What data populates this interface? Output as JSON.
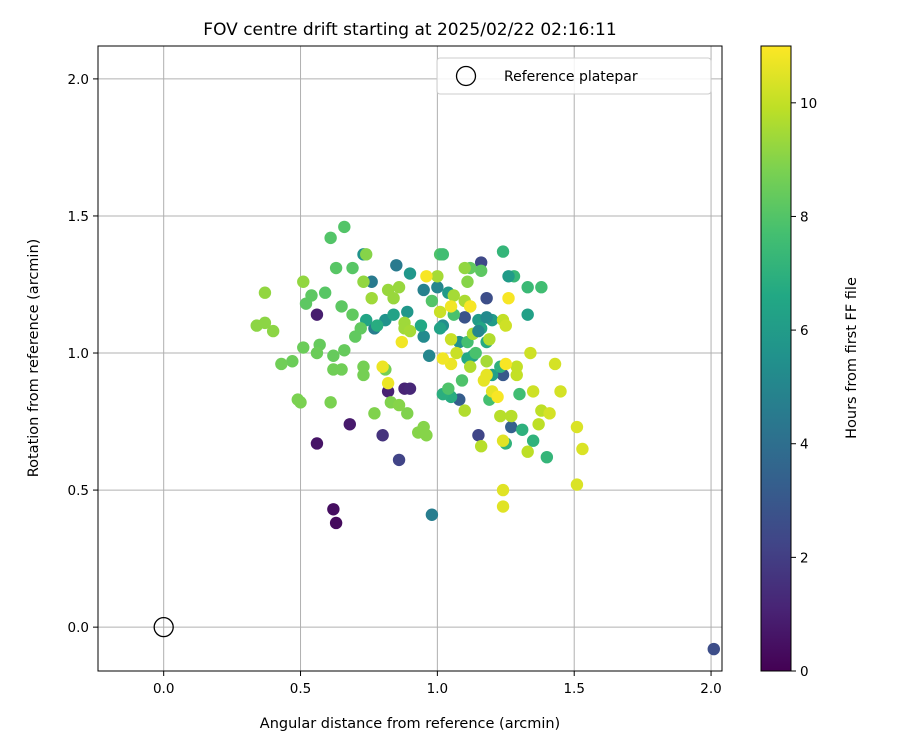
{
  "chart_data": {
    "type": "scatter",
    "title": "FOV centre drift starting at 2025/02/22 02:16:11",
    "xlabel": "Angular distance from reference (arcmin)",
    "ylabel": "Rotation from reference (arcmin)",
    "xlim": [
      -0.24,
      2.04
    ],
    "ylim": [
      -0.16,
      2.12
    ],
    "xticks": [
      "0.0",
      "0.5",
      "1.0",
      "1.5",
      "2.0"
    ],
    "xtick_values": [
      0.0,
      0.5,
      1.0,
      1.5,
      2.0
    ],
    "yticks": [
      "0.0",
      "0.5",
      "1.0",
      "1.5",
      "2.0"
    ],
    "ytick_values": [
      0.0,
      0.5,
      1.0,
      1.5,
      2.0
    ],
    "grid": true,
    "legend": {
      "label": "Reference platepar",
      "placement": "top-right"
    },
    "reference_point": {
      "x": 0.0,
      "y": 0.0
    },
    "colorbar": {
      "label": "Hours from first FF file",
      "colormap": "viridis",
      "range": [
        0,
        11
      ],
      "ticks": [
        "0",
        "2",
        "4",
        "6",
        "8",
        "10"
      ],
      "tick_values": [
        0,
        2,
        4,
        6,
        8,
        10
      ]
    },
    "series": [
      {
        "points": [
          {
            "x": 0.63,
            "y": 0.38,
            "h": 0.3
          },
          {
            "x": 0.62,
            "y": 0.43,
            "h": 0.4
          },
          {
            "x": 0.56,
            "y": 0.67,
            "h": 0.6
          },
          {
            "x": 0.68,
            "y": 0.74,
            "h": 0.8
          },
          {
            "x": 0.56,
            "y": 1.14,
            "h": 0.9
          },
          {
            "x": 0.82,
            "y": 0.86,
            "h": 1.0
          },
          {
            "x": 0.88,
            "y": 0.87,
            "h": 1.1
          },
          {
            "x": 0.9,
            "y": 0.87,
            "h": 1.2
          },
          {
            "x": 0.8,
            "y": 0.7,
            "h": 1.6
          },
          {
            "x": 0.86,
            "y": 0.61,
            "h": 2.2
          },
          {
            "x": 1.15,
            "y": 0.7,
            "h": 2.3
          },
          {
            "x": 1.16,
            "y": 1.33,
            "h": 2.4
          },
          {
            "x": 1.18,
            "y": 1.2,
            "h": 2.6
          },
          {
            "x": 1.1,
            "y": 1.13,
            "h": 2.8
          },
          {
            "x": 1.24,
            "y": 0.92,
            "h": 3.0
          },
          {
            "x": 1.08,
            "y": 0.83,
            "h": 3.2
          },
          {
            "x": 1.27,
            "y": 0.73,
            "h": 3.4
          },
          {
            "x": 2.01,
            "y": -0.08,
            "h": 2.6
          },
          {
            "x": 0.98,
            "y": 0.41,
            "h": 4.6
          },
          {
            "x": 0.85,
            "y": 1.32,
            "h": 4.5
          },
          {
            "x": 0.76,
            "y": 1.26,
            "h": 4.5
          },
          {
            "x": 0.77,
            "y": 1.09,
            "h": 4.6
          },
          {
            "x": 0.95,
            "y": 1.23,
            "h": 4.8
          },
          {
            "x": 1.0,
            "y": 1.24,
            "h": 5.0
          },
          {
            "x": 0.97,
            "y": 0.99,
            "h": 5.0
          },
          {
            "x": 0.95,
            "y": 1.06,
            "h": 5.2
          },
          {
            "x": 1.02,
            "y": 1.1,
            "h": 5.4
          },
          {
            "x": 1.08,
            "y": 1.04,
            "h": 5.5
          },
          {
            "x": 0.73,
            "y": 1.36,
            "h": 5.6
          },
          {
            "x": 0.81,
            "y": 1.12,
            "h": 5.6
          },
          {
            "x": 0.89,
            "y": 1.15,
            "h": 5.8
          },
          {
            "x": 0.9,
            "y": 1.29,
            "h": 5.8
          },
          {
            "x": 1.04,
            "y": 1.22,
            "h": 5.9
          },
          {
            "x": 1.15,
            "y": 1.12,
            "h": 6.0
          },
          {
            "x": 1.2,
            "y": 1.12,
            "h": 6.0
          },
          {
            "x": 1.13,
            "y": 0.99,
            "h": 6.1
          },
          {
            "x": 1.2,
            "y": 0.92,
            "h": 6.2
          },
          {
            "x": 1.33,
            "y": 1.14,
            "h": 6.2
          },
          {
            "x": 1.01,
            "y": 1.09,
            "h": 6.3
          },
          {
            "x": 0.84,
            "y": 1.14,
            "h": 6.3
          },
          {
            "x": 0.74,
            "y": 1.12,
            "h": 6.4
          },
          {
            "x": 1.16,
            "y": 1.09,
            "h": 6.5
          },
          {
            "x": 0.94,
            "y": 1.1,
            "h": 6.6
          },
          {
            "x": 1.11,
            "y": 0.98,
            "h": 6.6
          },
          {
            "x": 1.18,
            "y": 1.04,
            "h": 6.7
          },
          {
            "x": 0.78,
            "y": 1.1,
            "h": 6.8
          },
          {
            "x": 1.05,
            "y": 0.84,
            "h": 6.8
          },
          {
            "x": 1.02,
            "y": 0.85,
            "h": 6.9
          },
          {
            "x": 1.23,
            "y": 0.95,
            "h": 7.0
          },
          {
            "x": 1.31,
            "y": 0.72,
            "h": 7.0
          },
          {
            "x": 1.25,
            "y": 0.67,
            "h": 7.1
          },
          {
            "x": 1.35,
            "y": 0.68,
            "h": 7.1
          },
          {
            "x": 1.4,
            "y": 0.62,
            "h": 7.2
          },
          {
            "x": 1.24,
            "y": 1.37,
            "h": 7.2
          },
          {
            "x": 1.28,
            "y": 1.28,
            "h": 7.3
          },
          {
            "x": 1.33,
            "y": 1.24,
            "h": 7.4
          },
          {
            "x": 1.38,
            "y": 1.24,
            "h": 7.6
          },
          {
            "x": 1.3,
            "y": 0.85,
            "h": 7.6
          },
          {
            "x": 1.19,
            "y": 0.83,
            "h": 7.7
          },
          {
            "x": 1.11,
            "y": 1.04,
            "h": 7.7
          },
          {
            "x": 1.06,
            "y": 1.14,
            "h": 7.8
          },
          {
            "x": 1.14,
            "y": 1.0,
            "h": 7.8
          },
          {
            "x": 1.04,
            "y": 0.87,
            "h": 7.9
          },
          {
            "x": 1.09,
            "y": 0.9,
            "h": 7.9
          },
          {
            "x": 1.01,
            "y": 1.36,
            "h": 7.9
          },
          {
            "x": 0.98,
            "y": 1.19,
            "h": 8.0
          },
          {
            "x": 0.66,
            "y": 1.46,
            "h": 8.0
          },
          {
            "x": 0.61,
            "y": 1.42,
            "h": 8.0
          },
          {
            "x": 0.63,
            "y": 1.31,
            "h": 8.1
          },
          {
            "x": 0.69,
            "y": 1.31,
            "h": 8.1
          },
          {
            "x": 0.59,
            "y": 1.22,
            "h": 8.1
          },
          {
            "x": 0.54,
            "y": 1.21,
            "h": 8.2
          },
          {
            "x": 0.52,
            "y": 1.18,
            "h": 8.2
          },
          {
            "x": 0.65,
            "y": 1.17,
            "h": 8.2
          },
          {
            "x": 0.69,
            "y": 1.14,
            "h": 8.3
          },
          {
            "x": 0.72,
            "y": 1.09,
            "h": 8.3
          },
          {
            "x": 0.7,
            "y": 1.06,
            "h": 8.3
          },
          {
            "x": 0.57,
            "y": 1.03,
            "h": 8.4
          },
          {
            "x": 0.66,
            "y": 1.01,
            "h": 8.4
          },
          {
            "x": 0.62,
            "y": 0.99,
            "h": 8.4
          },
          {
            "x": 0.56,
            "y": 1.0,
            "h": 8.5
          },
          {
            "x": 0.51,
            "y": 1.02,
            "h": 8.5
          },
          {
            "x": 0.47,
            "y": 0.97,
            "h": 8.5
          },
          {
            "x": 0.43,
            "y": 0.96,
            "h": 8.6
          },
          {
            "x": 0.62,
            "y": 0.94,
            "h": 8.6
          },
          {
            "x": 0.65,
            "y": 0.94,
            "h": 8.6
          },
          {
            "x": 0.73,
            "y": 0.95,
            "h": 8.7
          },
          {
            "x": 0.73,
            "y": 0.92,
            "h": 8.7
          },
          {
            "x": 0.81,
            "y": 0.94,
            "h": 8.7
          },
          {
            "x": 0.49,
            "y": 0.83,
            "h": 8.8
          },
          {
            "x": 0.5,
            "y": 0.82,
            "h": 8.8
          },
          {
            "x": 0.61,
            "y": 0.82,
            "h": 8.8
          },
          {
            "x": 0.77,
            "y": 0.78,
            "h": 8.9
          },
          {
            "x": 0.83,
            "y": 0.82,
            "h": 8.9
          },
          {
            "x": 0.89,
            "y": 0.78,
            "h": 8.9
          },
          {
            "x": 0.93,
            "y": 0.71,
            "h": 9.0
          },
          {
            "x": 0.95,
            "y": 0.73,
            "h": 9.0
          },
          {
            "x": 0.96,
            "y": 0.7,
            "h": 9.0
          },
          {
            "x": 0.86,
            "y": 0.81,
            "h": 9.0
          },
          {
            "x": 0.34,
            "y": 1.1,
            "h": 9.1
          },
          {
            "x": 0.37,
            "y": 1.11,
            "h": 9.1
          },
          {
            "x": 0.4,
            "y": 1.08,
            "h": 9.1
          },
          {
            "x": 0.37,
            "y": 1.22,
            "h": 9.2
          },
          {
            "x": 0.51,
            "y": 1.26,
            "h": 9.2
          },
          {
            "x": 0.73,
            "y": 1.26,
            "h": 9.2
          },
          {
            "x": 0.82,
            "y": 1.23,
            "h": 9.3
          },
          {
            "x": 0.86,
            "y": 1.24,
            "h": 9.3
          },
          {
            "x": 0.84,
            "y": 1.2,
            "h": 9.3
          },
          {
            "x": 0.76,
            "y": 1.2,
            "h": 9.4
          },
          {
            "x": 0.88,
            "y": 1.11,
            "h": 9.4
          },
          {
            "x": 0.88,
            "y": 1.09,
            "h": 9.4
          },
          {
            "x": 0.9,
            "y": 1.08,
            "h": 9.5
          },
          {
            "x": 1.0,
            "y": 1.28,
            "h": 9.5
          },
          {
            "x": 1.06,
            "y": 1.21,
            "h": 9.5
          },
          {
            "x": 1.1,
            "y": 1.19,
            "h": 9.6
          },
          {
            "x": 1.12,
            "y": 1.17,
            "h": 9.6
          },
          {
            "x": 1.13,
            "y": 1.07,
            "h": 9.6
          },
          {
            "x": 1.19,
            "y": 1.05,
            "h": 9.7
          },
          {
            "x": 1.12,
            "y": 0.95,
            "h": 9.7
          },
          {
            "x": 1.1,
            "y": 0.79,
            "h": 9.7
          },
          {
            "x": 1.16,
            "y": 0.66,
            "h": 9.8
          },
          {
            "x": 1.23,
            "y": 0.77,
            "h": 9.8
          },
          {
            "x": 1.27,
            "y": 0.77,
            "h": 9.8
          },
          {
            "x": 1.33,
            "y": 0.64,
            "h": 9.9
          },
          {
            "x": 1.37,
            "y": 0.74,
            "h": 9.9
          },
          {
            "x": 1.38,
            "y": 0.79,
            "h": 9.9
          },
          {
            "x": 1.29,
            "y": 0.92,
            "h": 10.0
          },
          {
            "x": 1.29,
            "y": 0.95,
            "h": 10.0
          },
          {
            "x": 1.24,
            "y": 1.12,
            "h": 10.0
          },
          {
            "x": 1.07,
            "y": 1.0,
            "h": 10.1
          },
          {
            "x": 1.05,
            "y": 1.05,
            "h": 10.1
          },
          {
            "x": 1.01,
            "y": 1.15,
            "h": 10.1
          },
          {
            "x": 1.25,
            "y": 1.1,
            "h": 10.2
          },
          {
            "x": 1.34,
            "y": 1.0,
            "h": 10.2
          },
          {
            "x": 1.35,
            "y": 0.86,
            "h": 10.2
          },
          {
            "x": 1.41,
            "y": 0.78,
            "h": 10.3
          },
          {
            "x": 1.45,
            "y": 0.86,
            "h": 10.3
          },
          {
            "x": 1.43,
            "y": 0.96,
            "h": 10.3
          },
          {
            "x": 1.51,
            "y": 0.73,
            "h": 10.4
          },
          {
            "x": 1.53,
            "y": 0.65,
            "h": 10.4
          },
          {
            "x": 1.51,
            "y": 0.52,
            "h": 10.4
          },
          {
            "x": 1.24,
            "y": 0.5,
            "h": 10.5
          },
          {
            "x": 1.24,
            "y": 0.44,
            "h": 10.5
          },
          {
            "x": 1.24,
            "y": 0.68,
            "h": 10.5
          },
          {
            "x": 1.17,
            "y": 0.9,
            "h": 10.6
          },
          {
            "x": 1.18,
            "y": 0.92,
            "h": 10.6
          },
          {
            "x": 1.2,
            "y": 0.86,
            "h": 10.6
          },
          {
            "x": 1.05,
            "y": 0.96,
            "h": 10.7
          },
          {
            "x": 0.82,
            "y": 0.89,
            "h": 10.7
          },
          {
            "x": 0.8,
            "y": 0.95,
            "h": 10.7
          },
          {
            "x": 0.87,
            "y": 1.04,
            "h": 10.8
          },
          {
            "x": 1.02,
            "y": 0.98,
            "h": 10.8
          },
          {
            "x": 1.05,
            "y": 1.17,
            "h": 10.8
          },
          {
            "x": 0.96,
            "y": 1.28,
            "h": 10.9
          },
          {
            "x": 1.22,
            "y": 0.84,
            "h": 10.9
          },
          {
            "x": 1.26,
            "y": 1.2,
            "h": 10.9
          },
          {
            "x": 1.12,
            "y": 1.17,
            "h": 10.9
          },
          {
            "x": 1.25,
            "y": 0.96,
            "h": 10.9
          },
          {
            "x": 1.18,
            "y": 0.97,
            "h": 9.5
          },
          {
            "x": 1.16,
            "y": 1.3,
            "h": 8.2
          },
          {
            "x": 1.12,
            "y": 1.31,
            "h": 8.3
          },
          {
            "x": 1.11,
            "y": 1.26,
            "h": 9.0
          },
          {
            "x": 1.02,
            "y": 1.36,
            "h": 7.6
          },
          {
            "x": 1.1,
            "y": 1.31,
            "h": 9.2
          },
          {
            "x": 0.74,
            "y": 1.36,
            "h": 9.0
          },
          {
            "x": 1.26,
            "y": 1.28,
            "h": 6.0
          },
          {
            "x": 1.18,
            "y": 1.13,
            "h": 5.2
          },
          {
            "x": 1.15,
            "y": 1.08,
            "h": 5.0
          }
        ]
      }
    ]
  }
}
